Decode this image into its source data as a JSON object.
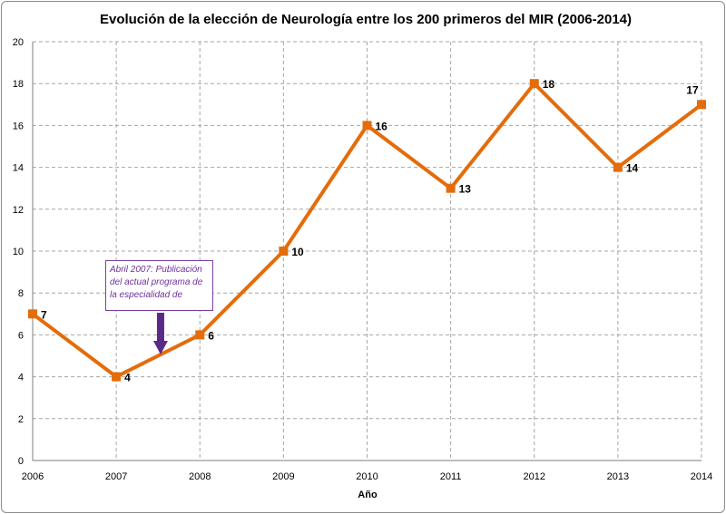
{
  "chart_data": {
    "type": "line",
    "title": "Evolución de la elección de Neurología entre los 200 primeros del MIR (2006-2014)",
    "xlabel": "Año",
    "ylabel": "",
    "x": [
      "2006",
      "2007",
      "2008",
      "2009",
      "2010",
      "2011",
      "2012",
      "2013",
      "2014"
    ],
    "series": [
      {
        "values": [
          7,
          4,
          6,
          10,
          16,
          13,
          18,
          14,
          17
        ]
      }
    ],
    "data_labels": [
      "7",
      "4",
      "6",
      "10",
      "16",
      "13",
      "18",
      "14",
      "17"
    ],
    "ylim": [
      0,
      20
    ],
    "yticks": [
      "0",
      "2",
      "4",
      "6",
      "8",
      "10",
      "12",
      "14",
      "16",
      "18",
      "20"
    ],
    "grid": true,
    "legend": "none",
    "colors": {
      "series": "#e46c0a",
      "annotation": "#7030a0",
      "arrow": "#5b2a86",
      "grid": "#a6a6a6"
    },
    "annotation": {
      "text": "Abril 2007: Publicación del actual programa de la especialidad de",
      "x": "2007.5",
      "y": 5
    }
  }
}
